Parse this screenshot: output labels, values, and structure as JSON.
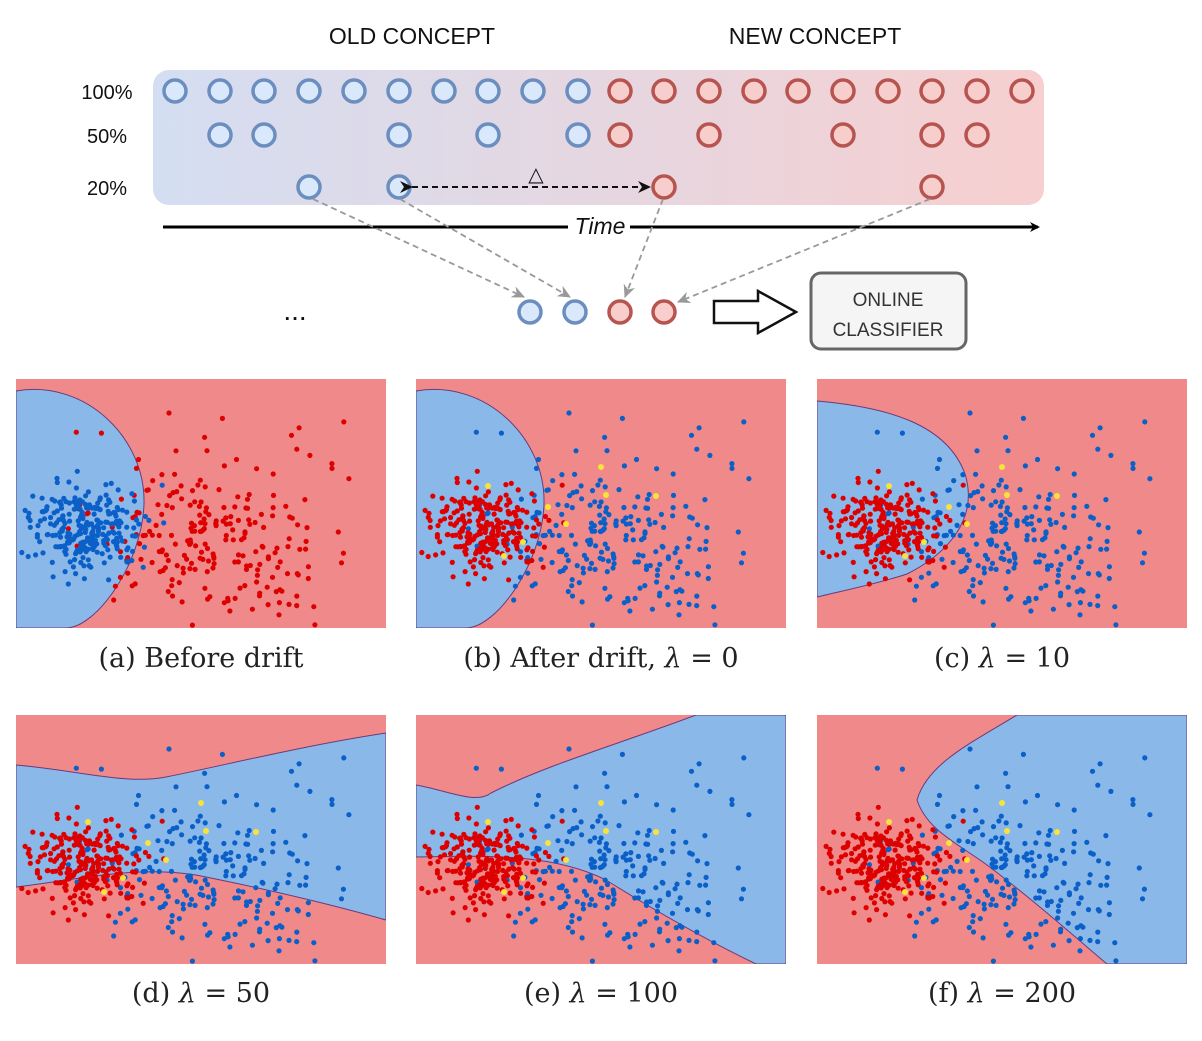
{
  "diagram": {
    "old_concept_label": "OLD CONCEPT",
    "new_concept_label": "NEW CONCEPT",
    "rows": [
      {
        "label": "100%",
        "old_count": 10,
        "new_count": 10
      },
      {
        "label": "50%",
        "old_count": 5,
        "new_count": 5
      },
      {
        "label": "20%",
        "old_count": 2,
        "new_count": 2
      }
    ],
    "delta_symbol": "△",
    "time_label": "Time",
    "ellipsis": "...",
    "classifier_label_line1": "ONLINE",
    "classifier_label_line2": "CLASSIFIER",
    "colors": {
      "old_stroke": "#6c8ebf",
      "old_fill": "#dae8fc",
      "new_stroke": "#b85450",
      "new_fill": "#f8cecc",
      "band_left": "#d4def2",
      "band_right": "#f7cfcf"
    }
  },
  "panels": [
    {
      "label": "(a) Before drift",
      "lambda": ""
    },
    {
      "label": "(b) After drift, ",
      "lambda": "0"
    },
    {
      "label": "(c) ",
      "lambda": "10"
    },
    {
      "label": "(d) ",
      "lambda": "50"
    },
    {
      "label": "(e) ",
      "lambda": "100"
    },
    {
      "label": "(f) ",
      "lambda": "200"
    }
  ],
  "colors": {
    "region_red": "#f08a8a",
    "region_blue": "#8ab8e8",
    "point_red": "#dd0000",
    "point_blue": "#0a5fc8",
    "point_yellow": "#f6e43a",
    "boundary": "#6a3a7a"
  }
}
